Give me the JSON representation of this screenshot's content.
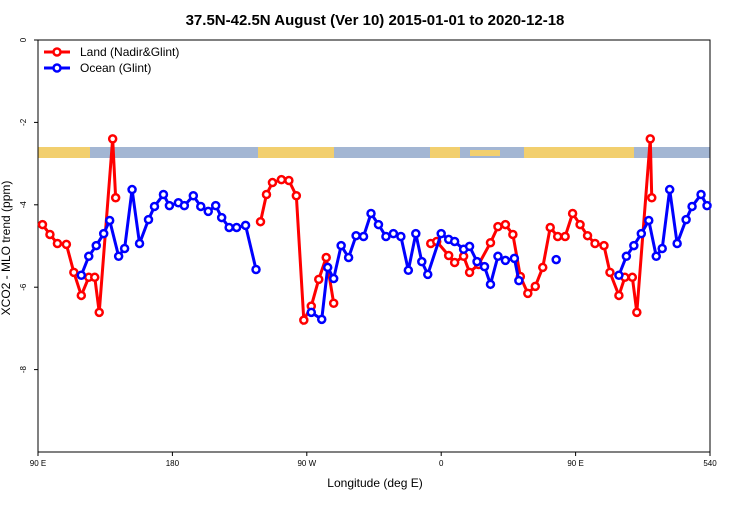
{
  "chart_data": {
    "type": "line",
    "title": "37.5N-42.5N August (Ver 10)   2015-01-01 to 2020-12-18",
    "x_label": "Longitude (deg E)",
    "y_label": "XCO2 - MLO trend (ppm)",
    "xlim": [
      90,
      540
    ],
    "xticks": [
      {
        "value": 90,
        "label": "90 E"
      },
      180,
      {
        "value": 270,
        "label": "90 W"
      },
      {
        "value": 360,
        "label": "0"
      },
      {
        "value": 450,
        "label": "90 E"
      },
      540
    ],
    "ylim": [
      -10,
      0
    ],
    "yticks": [
      0,
      -2,
      -4,
      -6,
      -8
    ],
    "legend": "top-left",
    "series": [
      {
        "name": "Land (Nadir&Glint)",
        "color": "#ff0000",
        "x": [
          93,
          98,
          103,
          109,
          114,
          119,
          124,
          128,
          131,
          140,
          142,
          null,
          239,
          243,
          247,
          253,
          258,
          263,
          268,
          273,
          278,
          283,
          288,
          null,
          353,
          357,
          365,
          369,
          375,
          379,
          385,
          393,
          398,
          403,
          408,
          413,
          418,
          423,
          428,
          433,
          438,
          443,
          448,
          453,
          458,
          463,
          469,
          473,
          479,
          483,
          488,
          491,
          500,
          501
        ],
        "values": [
          -4.48,
          -4.72,
          -4.94,
          -4.96,
          -5.64,
          -6.2,
          -5.76,
          -5.76,
          -6.61,
          -2.4,
          -3.83,
          null,
          -4.41,
          -3.75,
          -3.46,
          -3.39,
          -3.41,
          -3.78,
          -6.8,
          -6.46,
          -5.81,
          -5.28,
          -6.39,
          null,
          -4.94,
          -4.89,
          -5.23,
          -5.4,
          -5.25,
          -5.64,
          -5.45,
          -4.92,
          -4.53,
          -4.48,
          -4.72,
          -5.74,
          -6.15,
          -5.98,
          -5.52,
          -4.55,
          -4.77,
          -4.77,
          -4.21,
          -4.48,
          -4.75,
          -4.94,
          -4.99,
          -5.64,
          -6.2,
          -5.76,
          -5.76,
          -6.61,
          -2.4,
          -3.83
        ]
      },
      {
        "name": "Ocean (Glint)",
        "color": "#0000ff",
        "x": [
          119,
          124,
          129,
          134,
          138,
          144,
          148,
          153,
          158,
          164,
          168,
          174,
          178,
          184,
          188,
          194,
          199,
          204,
          209,
          213,
          218,
          223,
          229,
          236,
          null,
          273,
          280,
          284,
          288,
          293,
          298,
          303,
          308,
          313,
          318,
          323,
          328,
          333,
          338,
          343,
          347,
          351,
          360,
          365,
          369,
          375,
          379,
          384,
          389,
          393,
          398,
          403,
          409,
          412,
          null,
          437,
          null,
          479,
          484,
          489,
          494,
          499,
          504,
          508,
          513,
          518,
          524,
          528,
          534,
          538
        ],
        "values": [
          -5.71,
          -5.25,
          -4.99,
          -4.7,
          -4.38,
          -5.25,
          -5.06,
          -3.63,
          -4.94,
          -4.36,
          -4.04,
          -3.75,
          -4.02,
          -3.95,
          -4.02,
          -3.78,
          -4.04,
          -4.16,
          -4.02,
          -4.31,
          -4.55,
          -4.55,
          -4.5,
          -5.57,
          null,
          -6.61,
          -6.78,
          -5.52,
          -5.79,
          -4.99,
          -5.28,
          -4.75,
          -4.77,
          -4.21,
          -4.48,
          -4.77,
          -4.7,
          -4.77,
          -5.59,
          -4.7,
          -5.38,
          -5.69,
          -4.7,
          -4.84,
          -4.89,
          -5.08,
          -5.01,
          -5.38,
          -5.5,
          -5.93,
          -5.25,
          -5.35,
          -5.3,
          -5.84,
          null,
          -5.33,
          null,
          -5.71,
          -5.25,
          -4.99,
          -4.7,
          -4.38,
          -5.25,
          -5.06,
          -3.63,
          -4.94,
          -4.36,
          -4.04,
          -3.75,
          -4.02
        ]
      }
    ]
  }
}
